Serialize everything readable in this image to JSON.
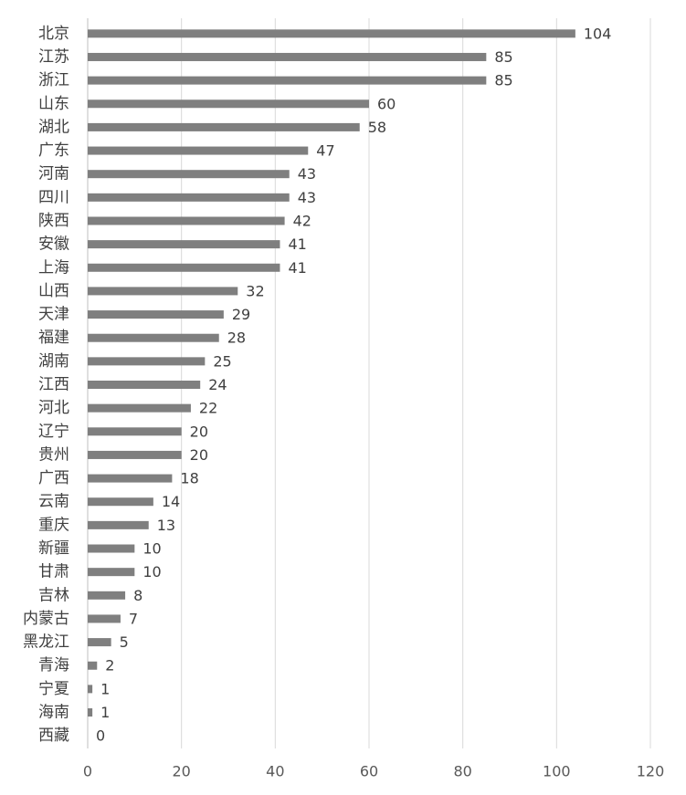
{
  "chart_data": {
    "type": "bar",
    "orientation": "horizontal",
    "categories": [
      "北京",
      "江苏",
      "浙江",
      "山东",
      "湖北",
      "广东",
      "河南",
      "四川",
      "陕西",
      "安徽",
      "上海",
      "山西",
      "天津",
      "福建",
      "湖南",
      "江西",
      "河北",
      "辽宁",
      "贵州",
      "广西",
      "云南",
      "重庆",
      "新疆",
      "甘肃",
      "吉林",
      "内蒙古",
      "黑龙江",
      "青海",
      "宁夏",
      "海南",
      "西藏"
    ],
    "values": [
      104,
      85,
      85,
      60,
      58,
      47,
      43,
      43,
      42,
      41,
      41,
      32,
      29,
      28,
      25,
      24,
      22,
      20,
      20,
      18,
      14,
      13,
      10,
      10,
      8,
      7,
      5,
      2,
      1,
      1,
      0
    ],
    "color": "#7f7f7f",
    "xlim": [
      0,
      120
    ],
    "xticks": [
      0,
      20,
      40,
      60,
      80,
      100,
      120
    ],
    "grid": true
  }
}
